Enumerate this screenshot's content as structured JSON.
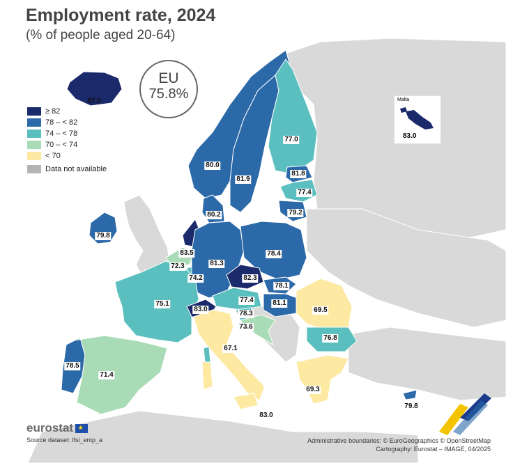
{
  "title": "Employment rate, 2024",
  "subtitle": "(% of people aged 20-64)",
  "eu_badge": {
    "label": "EU",
    "value": "75.8%"
  },
  "legend": [
    {
      "label": "≥ 82",
      "color": "#1b2a6b"
    },
    {
      "label": "78 – < 82",
      "color": "#2b69a8"
    },
    {
      "label": "74 – < 78",
      "color": "#5bbfbf"
    },
    {
      "label": "70 – < 74",
      "color": "#a9dcb6"
    },
    {
      "label": "< 70",
      "color": "#fde9a1"
    },
    {
      "label": "Data not available",
      "color": "#b4b4b4"
    }
  ],
  "malta_inset": {
    "name": "Malta",
    "value": "83.0"
  },
  "values": {
    "iceland": "87.0",
    "ireland": "79.8",
    "norway": "80.0",
    "sweden": "81.9",
    "finland": "77.0",
    "estonia": "81.8",
    "latvia": "77.4",
    "lithuania": "79.2",
    "denmark": "80.2",
    "netherlands": "83.5",
    "belgium": "72.3",
    "luxembourg": "74.2",
    "germany": "81.3",
    "poland": "78.4",
    "czechia": "82.3",
    "slovakia": "78.1",
    "austria": "77.4",
    "hungary": "81.1",
    "slovenia": "78.3",
    "croatia": "73.6",
    "romania": "69.5",
    "bulgaria": "76.8",
    "france": "75.1",
    "switzerland": "83.0",
    "italy": "67.1",
    "greece": "69.3",
    "portugal": "78.5",
    "spain": "71.4",
    "cyprus": "79.8",
    "malta": "83.0"
  },
  "logo": "eurostat",
  "source": "Source dataset: lfsi_emp_a",
  "credits": [
    "Administrative boundaries: © EuroGeographics © OpenStreetMap",
    "Cartography: Eurostat – IMAGE, 04/2025"
  ],
  "icons": [
    "eu-flag-icon",
    "eurostat-logo-icon"
  ]
}
